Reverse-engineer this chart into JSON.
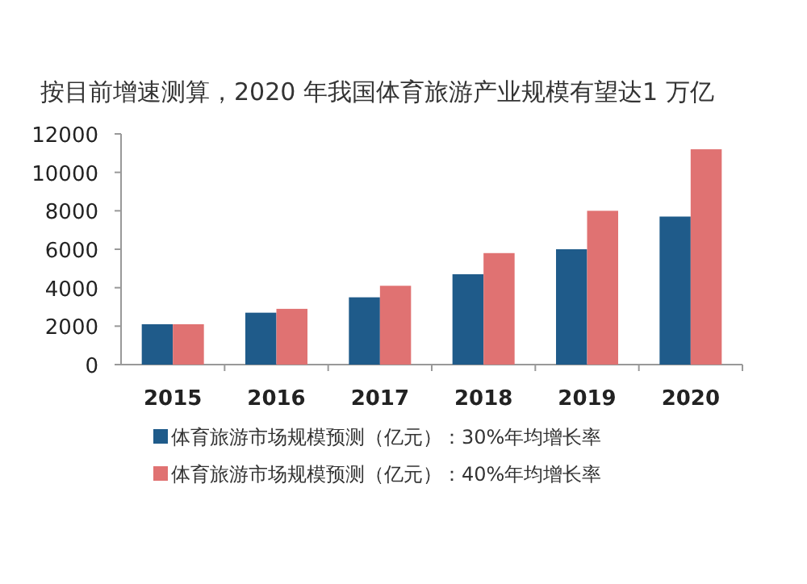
{
  "chart_data": {
    "type": "bar",
    "title": "按目前增速测算，2020 年我国体育旅游产业规模有望达1 万亿",
    "categories": [
      "2015",
      "2016",
      "2017",
      "2018",
      "2019",
      "2020"
    ],
    "series": [
      {
        "name": "体育旅游市场规模预测（亿元）：30%年均增长率",
        "color": "#1f5b8a",
        "values": [
          2100,
          2700,
          3500,
          4700,
          6000,
          7700
        ]
      },
      {
        "name": "体育旅游市场规模预测（亿元）：40%年均增长率",
        "color": "#e07272",
        "values": [
          2100,
          2900,
          4100,
          5800,
          8000,
          11200
        ]
      }
    ],
    "ylim": [
      0,
      12000
    ],
    "yticks": [
      0,
      2000,
      4000,
      6000,
      8000,
      10000,
      12000
    ],
    "grid": false,
    "legend": "bottom"
  }
}
